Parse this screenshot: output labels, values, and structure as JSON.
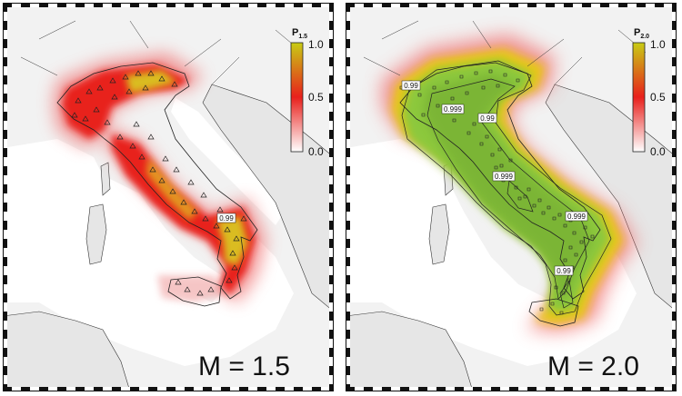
{
  "panels": [
    {
      "id": "left",
      "magnitude_label": "M = 1.5",
      "colorbar": {
        "title_main": "P",
        "title_sub": "1.5",
        "ticks": [
          "1.0",
          "0.5",
          "0.0"
        ],
        "colors": {
          "high": "#c8cc14",
          "mid": "#e8201c",
          "low": "#ffffff"
        }
      },
      "station_symbol": "triangle-icon",
      "contour_labels": [
        "0.99"
      ]
    },
    {
      "id": "right",
      "magnitude_label": "M = 2.0",
      "colorbar": {
        "title_main": "P",
        "title_sub": "2.0",
        "ticks": [
          "1.0",
          "0.5",
          "0.0"
        ],
        "colors": {
          "high": "#c8cc14",
          "mid": "#e8201c",
          "low": "#ffffff"
        }
      },
      "station_symbol": "square-icon",
      "contour_labels": [
        "0.99",
        "0.999",
        "0.99",
        "0.999",
        "0.999",
        "0.99"
      ]
    }
  ]
}
